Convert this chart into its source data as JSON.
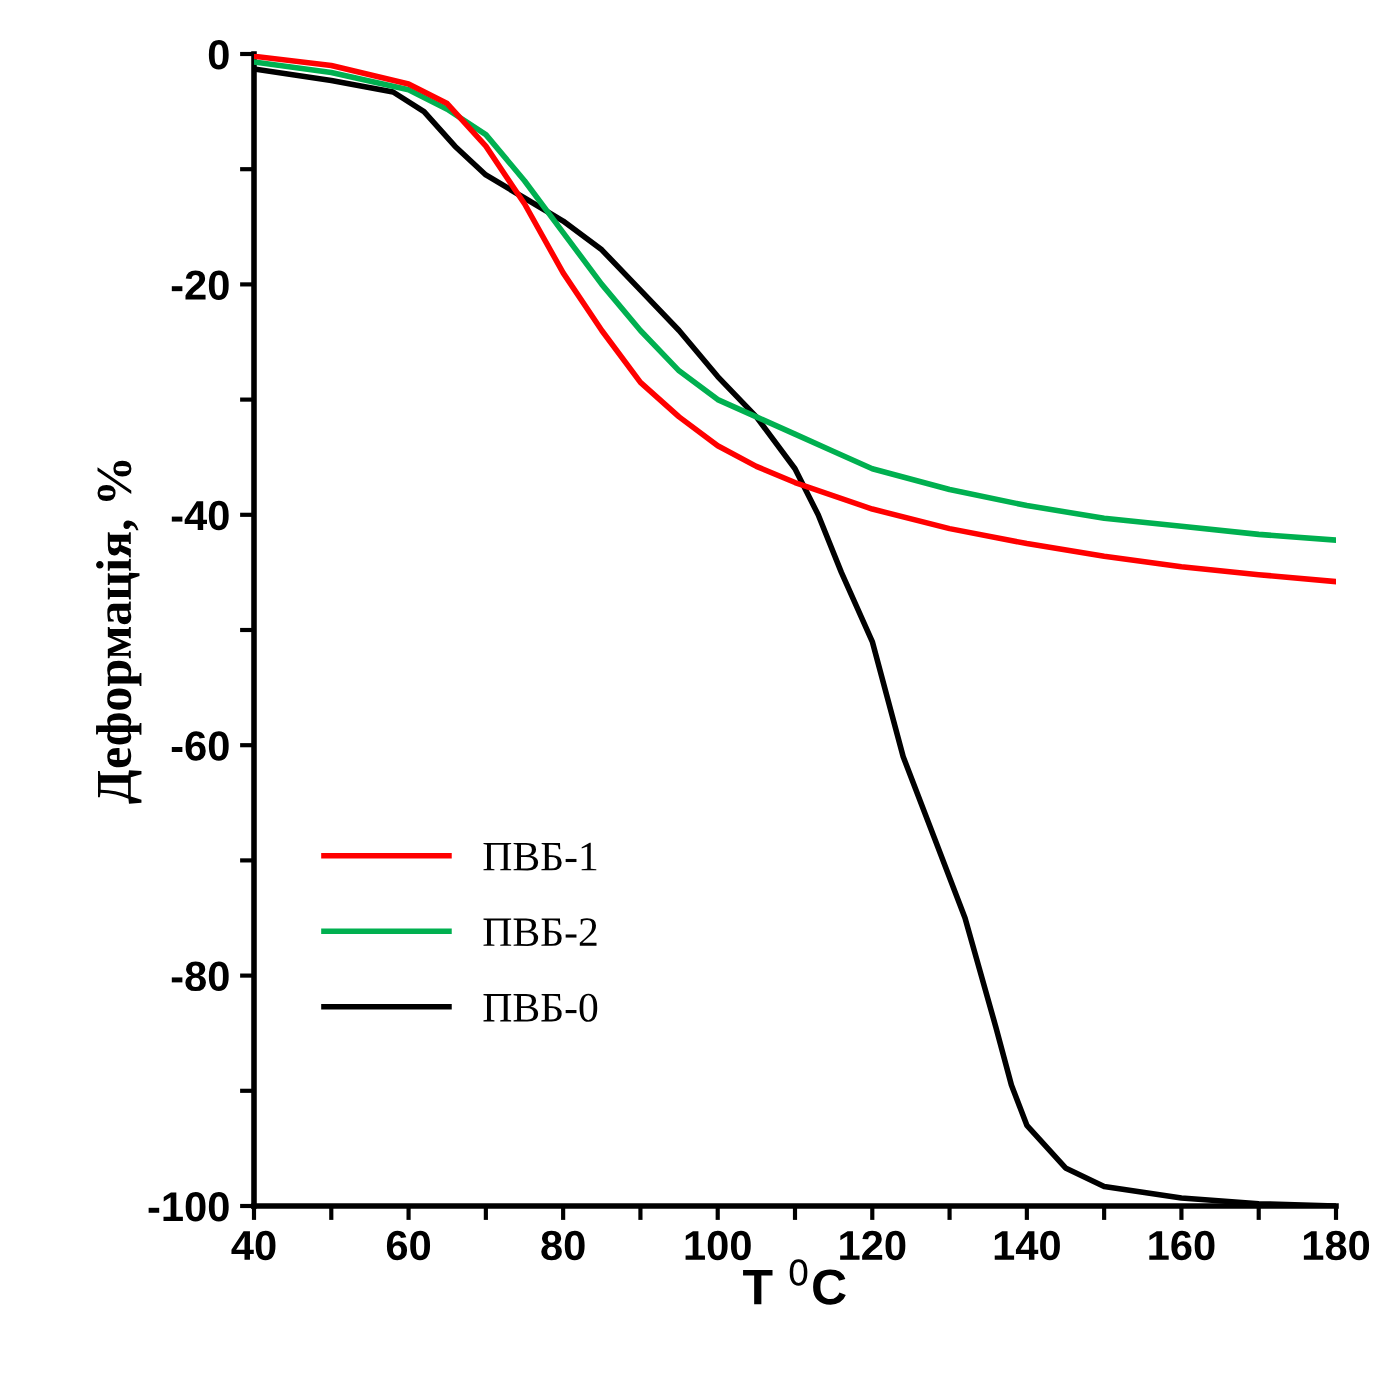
{
  "chart_data": {
    "type": "line",
    "xlabel": "T $^{0}$C",
    "ylabel": "Деформація, %",
    "xlim": [
      40,
      180
    ],
    "ylim": [
      -100,
      0
    ],
    "xticks": [
      40,
      {
        "value": 50,
        "label": null
      },
      60,
      {
        "value": 70,
        "label": null
      },
      80,
      {
        "value": 90,
        "label": null
      },
      100,
      {
        "value": 110,
        "label": null
      },
      120,
      {
        "value": 130,
        "label": null
      },
      140,
      {
        "value": 150,
        "label": null
      },
      160,
      {
        "value": 170,
        "label": null
      },
      180
    ],
    "yticks": [
      -100,
      {
        "value": -90,
        "label": null
      },
      -80,
      {
        "value": -70,
        "label": null
      },
      -60,
      {
        "value": -50,
        "label": null
      },
      -40,
      {
        "value": -30,
        "label": null
      },
      -20,
      {
        "value": -10,
        "label": null
      },
      0
    ],
    "grid": false,
    "legend": "bottom left",
    "marker": "none",
    "line_style": "solid",
    "series": [
      {
        "name": "ПВБ-1",
        "color": "#ff0000",
        "x": [
          40,
          50,
          60,
          65,
          70,
          75,
          80,
          85,
          90,
          95,
          100,
          105,
          110,
          120,
          130,
          140,
          150,
          160,
          170,
          180
        ],
        "values": [
          -0.2,
          -1.0,
          -2.6,
          -4.3,
          -8,
          -13,
          -19,
          -24,
          -28.5,
          -31.5,
          -34,
          -35.8,
          -37.2,
          -39.5,
          -41.2,
          -42.5,
          -43.6,
          -44.5,
          -45.2,
          -45.8
        ]
      },
      {
        "name": "ПВБ-2",
        "color": "#00b050",
        "x": [
          40,
          50,
          60,
          65,
          70,
          75,
          80,
          85,
          90,
          95,
          100,
          105,
          110,
          115,
          120,
          130,
          140,
          150,
          160,
          170,
          180
        ],
        "values": [
          -0.7,
          -1.6,
          -3.1,
          -4.8,
          -7,
          -11,
          -15.5,
          -20,
          -24,
          -27.5,
          -30,
          -31.5,
          -33,
          -34.5,
          -36,
          -37.8,
          -39.2,
          -40.3,
          -41,
          -41.7,
          -42.2
        ]
      },
      {
        "name": "ПВБ-0",
        "color": "#000000",
        "x": [
          40,
          50,
          58,
          62,
          66,
          70,
          75,
          80,
          85,
          90,
          95,
          100,
          105,
          110,
          113,
          116,
          120,
          124,
          128,
          132,
          136,
          138,
          140,
          145,
          150,
          160,
          170,
          180
        ],
        "values": [
          -1.3,
          -2.3,
          -3.3,
          -5,
          -8,
          -10.5,
          -12.5,
          -14.5,
          -17,
          -20.5,
          -24,
          -28,
          -31.5,
          -36,
          -40,
          -45,
          -51,
          -61,
          -68,
          -75,
          -84.5,
          -89.5,
          -93,
          -96.7,
          -98.3,
          -99.3,
          -99.8,
          -100
        ]
      }
    ]
  }
}
